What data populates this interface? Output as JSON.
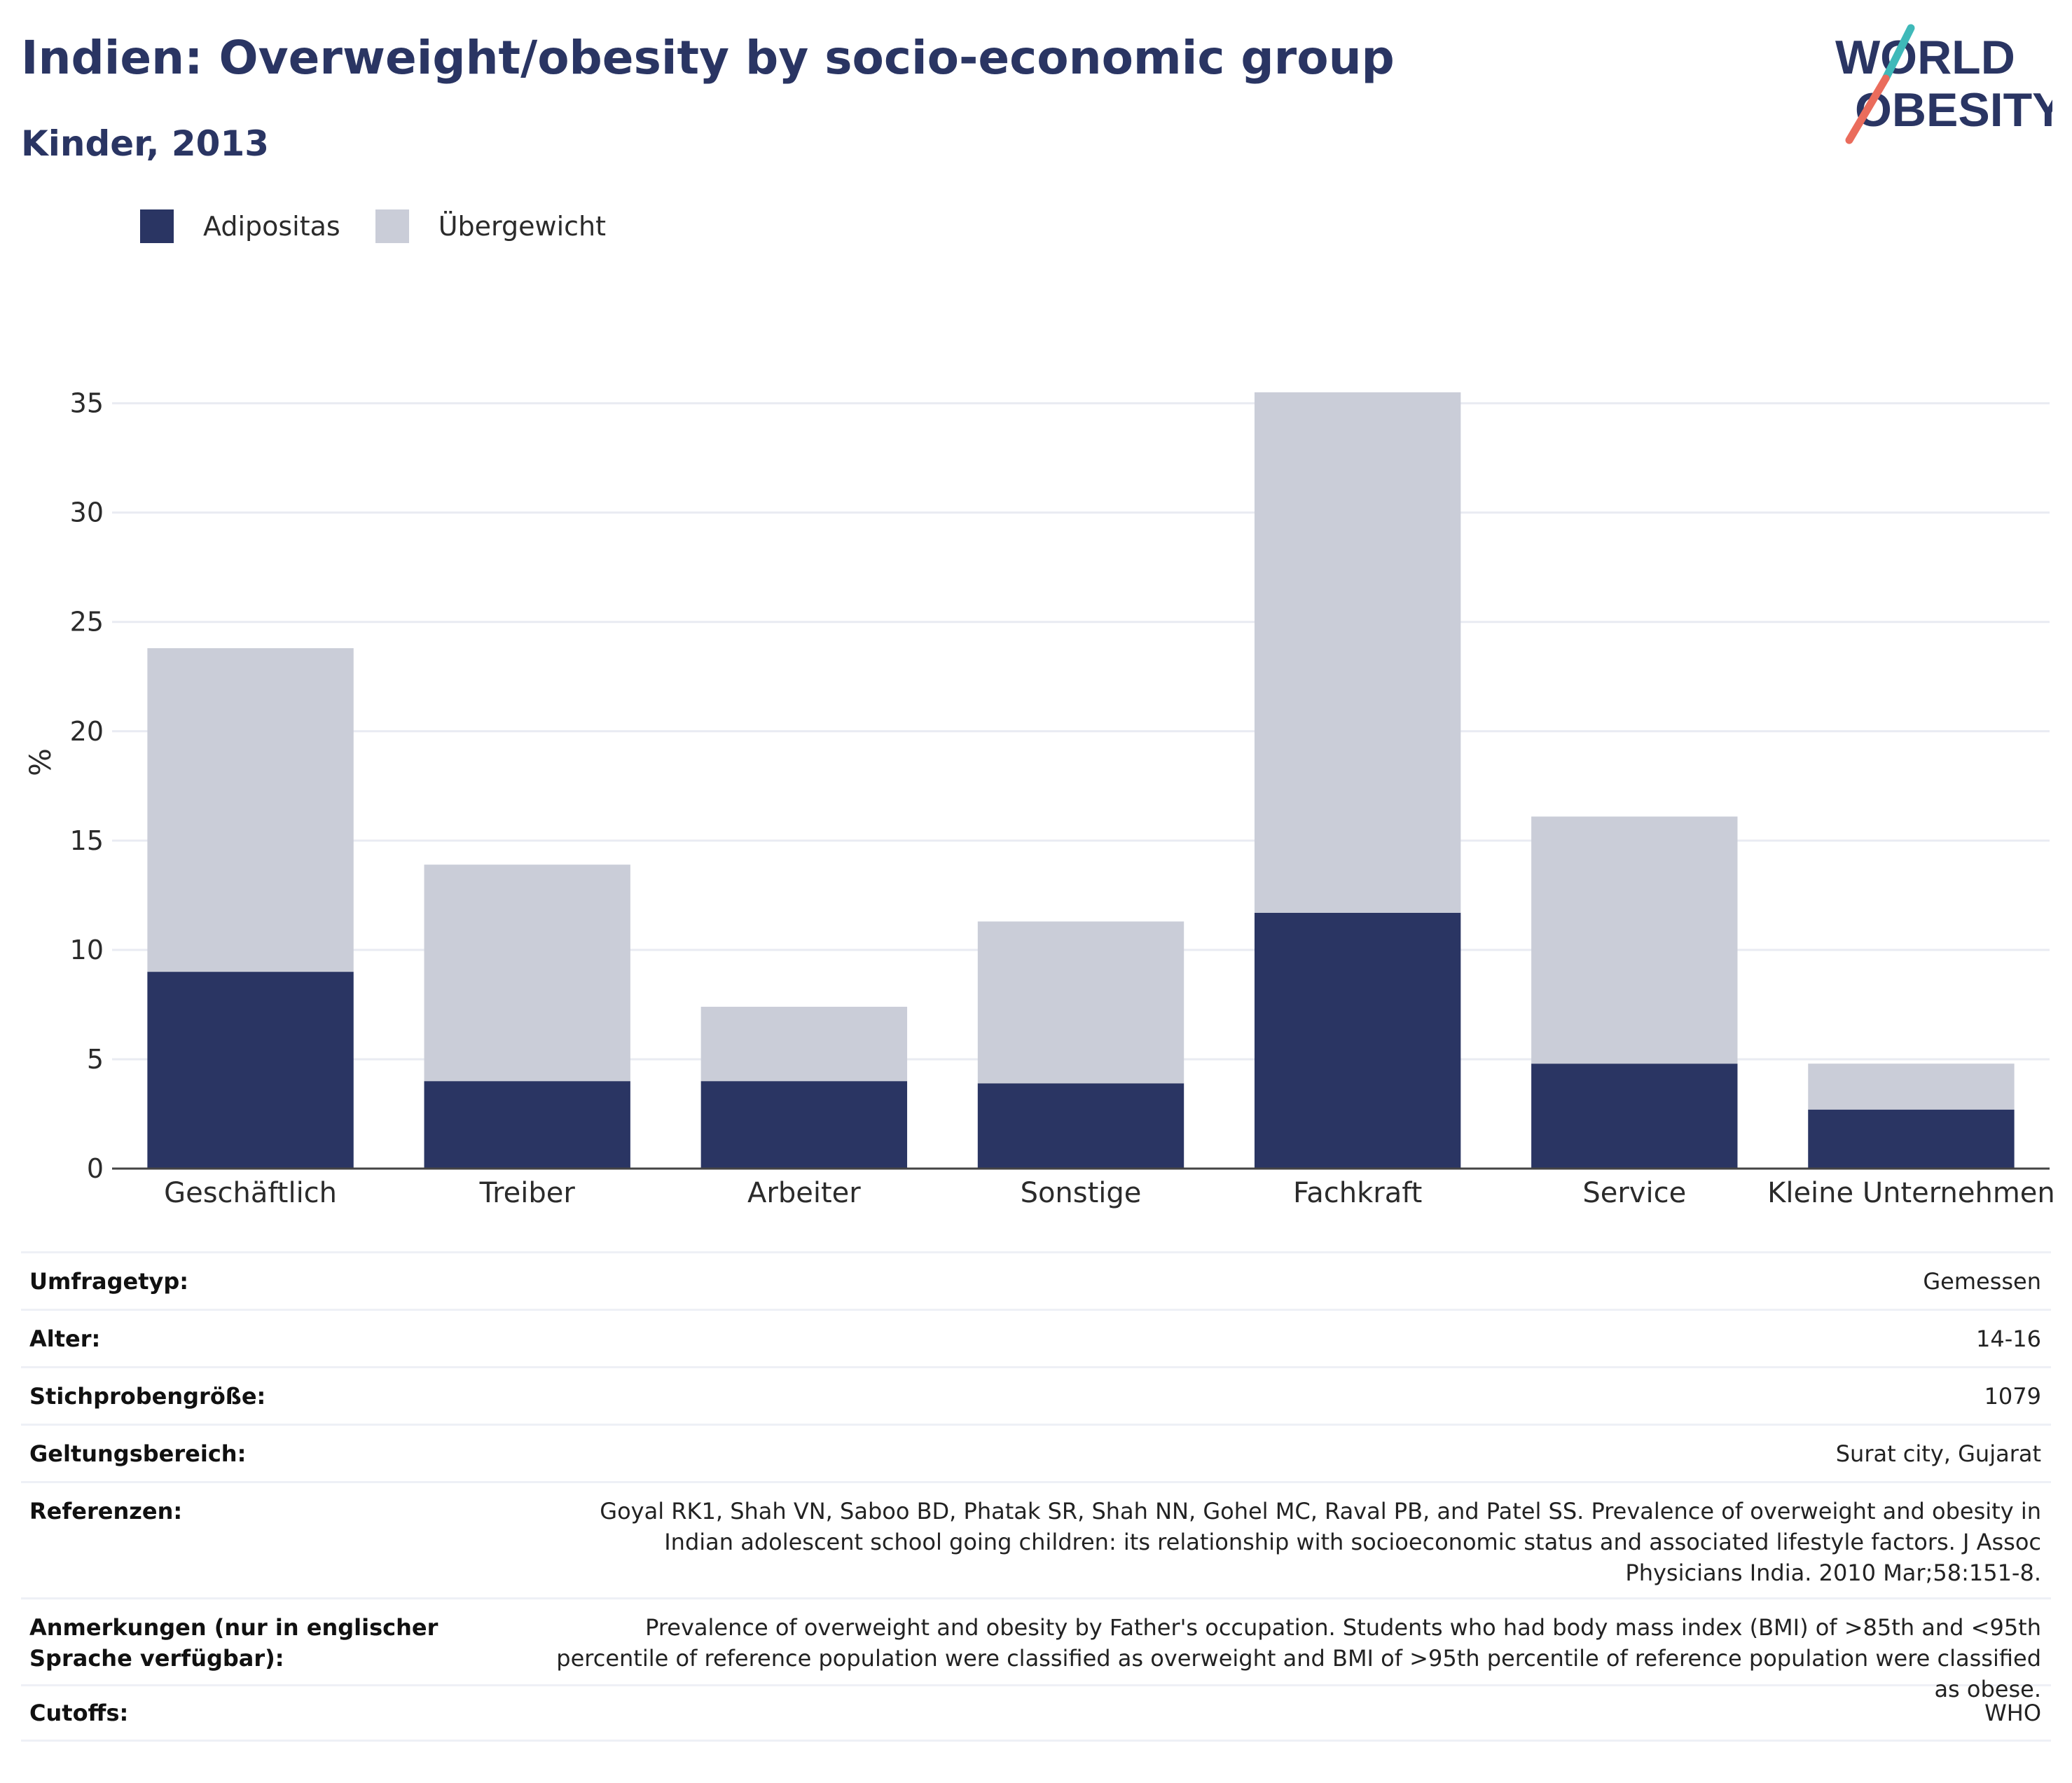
{
  "header": {
    "title": "Indien: Overweight/obesity by socio-economic group",
    "subtitle": "Kinder, 2013"
  },
  "logo": {
    "line1": "WORLD",
    "line2": "OBESITY"
  },
  "colors": {
    "adipositas": "#2a3563",
    "uebergewicht": "#cacdd8",
    "grid": "#e9ebf2",
    "axis": "#444444"
  },
  "legend": [
    {
      "label": "Adipositas",
      "color": "#2a3563"
    },
    {
      "label": "Übergewicht",
      "color": "#cacdd8"
    }
  ],
  "chart_data": {
    "type": "bar",
    "stacked": true,
    "title": "Indien: Overweight/obesity by socio-economic group",
    "subtitle": "Kinder, 2013",
    "xlabel": "",
    "ylabel": "%",
    "ylim": [
      0,
      35.5
    ],
    "yticks": [
      0,
      5,
      10,
      15,
      20,
      25,
      30,
      35
    ],
    "grid": true,
    "legend_position": "top-left",
    "categories": [
      "Geschäftlich",
      "Treiber",
      "Arbeiter",
      "Sonstige",
      "Fachkraft",
      "Service",
      "Kleine Unternehmen"
    ],
    "series": [
      {
        "name": "Adipositas",
        "color": "#2a3563",
        "values": [
          9.0,
          4.0,
          4.0,
          3.9,
          11.7,
          4.8,
          2.7
        ]
      },
      {
        "name": "Übergewicht",
        "color": "#cacdd8",
        "values": [
          14.8,
          9.9,
          3.4,
          7.4,
          23.8,
          11.3,
          2.1
        ]
      }
    ]
  },
  "metadata": [
    {
      "key": "Umfragetyp:",
      "value": "Gemessen"
    },
    {
      "key": "Alter:",
      "value": "14-16"
    },
    {
      "key": "Stichprobengröße:",
      "value": "1079"
    },
    {
      "key": "Geltungsbereich:",
      "value": "Surat city, Gujarat"
    },
    {
      "key": "Referenzen:",
      "value": "Goyal RK1, Shah VN, Saboo BD, Phatak SR, Shah NN, Gohel MC, Raval PB, and Patel SS. Prevalence of overweight and obesity in Indian adolescent school going children: its relationship with socioeconomic status and associated lifestyle factors. J Assoc Physicians India. 2010 Mar;58:151-8."
    },
    {
      "key": "Anmerkungen (nur in englischer Sprache verfügbar):",
      "value": "Prevalence of overweight and obesity by Father's occupation. Students who had body mass index (BMI) of >85th and <95th percentile of reference population were classified as overweight and BMI of >95th percentile of reference population were classified as obese."
    },
    {
      "key": "Cutoffs:",
      "value": "WHO"
    }
  ]
}
